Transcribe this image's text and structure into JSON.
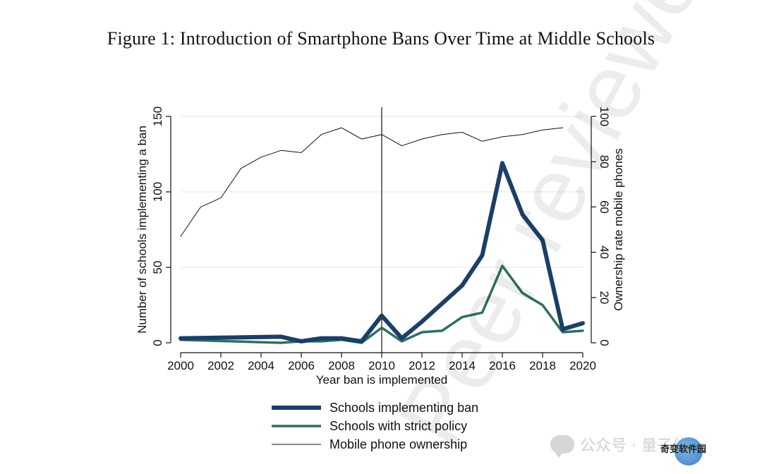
{
  "figure_title": "Figure 1: Introduction of Smartphone Bans Over Time at Middle Schools",
  "watermark_text": "Peer reviewe",
  "footer_text": "公众号 · 量子位",
  "brand_text": "奇变软件园",
  "chart_data": {
    "type": "line",
    "xlabel": "Year ban is implemented",
    "ylabel_left": "Number of schools implementing a ban",
    "ylabel_right": "Ownership rate mobile phones",
    "xlim": [
      2000,
      2020
    ],
    "ylim_left": [
      0,
      150
    ],
    "ylim_right": [
      0,
      100
    ],
    "x_ticks": [
      2000,
      2002,
      2004,
      2006,
      2008,
      2010,
      2012,
      2014,
      2016,
      2018,
      2020
    ],
    "y_left_ticks": [
      0,
      50,
      100,
      150
    ],
    "y_right_ticks": [
      0,
      20,
      40,
      60,
      80,
      100
    ],
    "grid": "horizontal",
    "reference_line_x": 2010,
    "legend_placement": "bottom",
    "series": [
      {
        "name": "Schools implementing ban",
        "axis": "left",
        "color": "#1b3f66",
        "x": [
          2000,
          2005,
          2006,
          2007,
          2008,
          2009,
          2010,
          2011,
          2012,
          2013,
          2014,
          2015,
          2016,
          2017,
          2018,
          2019,
          2020
        ],
        "values": [
          3,
          4,
          1,
          3,
          3,
          1,
          18,
          3,
          14,
          26,
          38,
          58,
          119,
          85,
          68,
          9,
          13
        ]
      },
      {
        "name": "Schools with strict policy",
        "axis": "left",
        "color": "#2e6e62",
        "x": [
          2000,
          2005,
          2006,
          2007,
          2008,
          2009,
          2010,
          2011,
          2012,
          2013,
          2014,
          2015,
          2016,
          2017,
          2018,
          2019,
          2020
        ],
        "values": [
          2,
          0,
          1,
          1,
          2,
          0,
          10,
          1,
          7,
          8,
          17,
          20,
          51,
          33,
          25,
          7,
          8
        ]
      },
      {
        "name": "Mobile phone ownership",
        "axis": "right",
        "color": "#111111",
        "x": [
          2000,
          2001,
          2002,
          2003,
          2004,
          2005,
          2006,
          2007,
          2008,
          2009,
          2010,
          2011,
          2012,
          2013,
          2014,
          2015,
          2016,
          2017,
          2018,
          2019
        ],
        "values": [
          47,
          60,
          64,
          77,
          82,
          85,
          84,
          92,
          95,
          90,
          92,
          87,
          90,
          92,
          93,
          89,
          91,
          92,
          94,
          95
        ]
      }
    ]
  }
}
